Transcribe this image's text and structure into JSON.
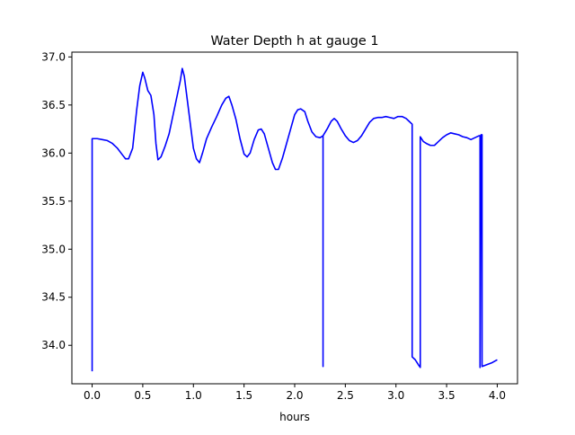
{
  "chart_data": {
    "type": "line",
    "title": "Water Depth h at gauge 1",
    "xlabel": "hours",
    "ylabel": "",
    "xlim": [
      -0.2,
      4.2
    ],
    "ylim": [
      33.6,
      37.05
    ],
    "xticks": [
      0.0,
      0.5,
      1.0,
      1.5,
      2.0,
      2.5,
      3.0,
      3.5,
      4.0
    ],
    "xtick_labels": [
      "0.0",
      "0.5",
      "1.0",
      "1.5",
      "2.0",
      "2.5",
      "3.0",
      "3.5",
      "4.0"
    ],
    "yticks": [
      34.0,
      34.5,
      35.0,
      35.5,
      36.0,
      36.5,
      37.0
    ],
    "ytick_labels": [
      "34.0",
      "34.5",
      "35.0",
      "35.5",
      "36.0",
      "36.5",
      "37.0"
    ],
    "grid": false,
    "series": [
      {
        "color": "#0000ff",
        "points": [
          [
            0.0,
            33.73
          ],
          [
            0.0,
            36.15
          ],
          [
            0.05,
            36.15
          ],
          [
            0.1,
            36.14
          ],
          [
            0.15,
            36.13
          ],
          [
            0.2,
            36.1
          ],
          [
            0.25,
            36.05
          ],
          [
            0.3,
            35.98
          ],
          [
            0.33,
            35.94
          ],
          [
            0.36,
            35.94
          ],
          [
            0.4,
            36.05
          ],
          [
            0.44,
            36.45
          ],
          [
            0.47,
            36.7
          ],
          [
            0.5,
            36.84
          ],
          [
            0.52,
            36.78
          ],
          [
            0.55,
            36.65
          ],
          [
            0.58,
            36.6
          ],
          [
            0.61,
            36.4
          ],
          [
            0.63,
            36.1
          ],
          [
            0.65,
            35.93
          ],
          [
            0.68,
            35.96
          ],
          [
            0.72,
            36.07
          ],
          [
            0.76,
            36.2
          ],
          [
            0.8,
            36.4
          ],
          [
            0.84,
            36.6
          ],
          [
            0.87,
            36.75
          ],
          [
            0.89,
            36.88
          ],
          [
            0.91,
            36.8
          ],
          [
            0.94,
            36.55
          ],
          [
            0.97,
            36.3
          ],
          [
            1.0,
            36.05
          ],
          [
            1.03,
            35.94
          ],
          [
            1.06,
            35.9
          ],
          [
            1.09,
            36.0
          ],
          [
            1.13,
            36.15
          ],
          [
            1.18,
            36.27
          ],
          [
            1.23,
            36.38
          ],
          [
            1.28,
            36.5
          ],
          [
            1.32,
            36.57
          ],
          [
            1.35,
            36.59
          ],
          [
            1.38,
            36.5
          ],
          [
            1.42,
            36.35
          ],
          [
            1.46,
            36.15
          ],
          [
            1.5,
            35.99
          ],
          [
            1.53,
            35.96
          ],
          [
            1.56,
            36.0
          ],
          [
            1.6,
            36.14
          ],
          [
            1.64,
            36.24
          ],
          [
            1.67,
            36.25
          ],
          [
            1.7,
            36.2
          ],
          [
            1.74,
            36.05
          ],
          [
            1.78,
            35.9
          ],
          [
            1.81,
            35.83
          ],
          [
            1.84,
            35.83
          ],
          [
            1.88,
            35.95
          ],
          [
            1.92,
            36.1
          ],
          [
            1.96,
            36.25
          ],
          [
            2.0,
            36.4
          ],
          [
            2.03,
            36.45
          ],
          [
            2.06,
            36.46
          ],
          [
            2.1,
            36.43
          ],
          [
            2.13,
            36.33
          ],
          [
            2.17,
            36.22
          ],
          [
            2.21,
            36.17
          ],
          [
            2.25,
            36.16
          ],
          [
            2.28,
            36.18
          ],
          [
            2.28,
            33.78
          ],
          [
            2.28,
            36.18
          ],
          [
            2.32,
            36.25
          ],
          [
            2.36,
            36.33
          ],
          [
            2.39,
            36.36
          ],
          [
            2.42,
            36.33
          ],
          [
            2.46,
            36.25
          ],
          [
            2.5,
            36.18
          ],
          [
            2.54,
            36.13
          ],
          [
            2.58,
            36.11
          ],
          [
            2.62,
            36.13
          ],
          [
            2.66,
            36.18
          ],
          [
            2.7,
            36.25
          ],
          [
            2.74,
            36.32
          ],
          [
            2.78,
            36.36
          ],
          [
            2.82,
            36.37
          ],
          [
            2.86,
            36.37
          ],
          [
            2.9,
            36.38
          ],
          [
            2.94,
            36.37
          ],
          [
            2.98,
            36.36
          ],
          [
            3.02,
            36.38
          ],
          [
            3.06,
            36.38
          ],
          [
            3.1,
            36.36
          ],
          [
            3.13,
            36.33
          ],
          [
            3.16,
            36.3
          ],
          [
            3.16,
            33.88
          ],
          [
            3.19,
            33.85
          ],
          [
            3.22,
            33.8
          ],
          [
            3.24,
            33.77
          ],
          [
            3.24,
            36.17
          ],
          [
            3.27,
            36.12
          ],
          [
            3.3,
            36.1
          ],
          [
            3.34,
            36.08
          ],
          [
            3.38,
            36.08
          ],
          [
            3.42,
            36.12
          ],
          [
            3.46,
            36.16
          ],
          [
            3.5,
            36.19
          ],
          [
            3.54,
            36.21
          ],
          [
            3.58,
            36.2
          ],
          [
            3.62,
            36.19
          ],
          [
            3.66,
            36.17
          ],
          [
            3.7,
            36.16
          ],
          [
            3.74,
            36.14
          ],
          [
            3.78,
            36.16
          ],
          [
            3.82,
            36.18
          ],
          [
            3.83,
            36.18
          ],
          [
            3.83,
            33.77
          ],
          [
            3.84,
            36.19
          ],
          [
            3.85,
            36.19
          ],
          [
            3.85,
            33.78
          ],
          [
            3.9,
            33.8
          ],
          [
            3.95,
            33.82
          ],
          [
            4.0,
            33.85
          ]
        ]
      }
    ]
  }
}
